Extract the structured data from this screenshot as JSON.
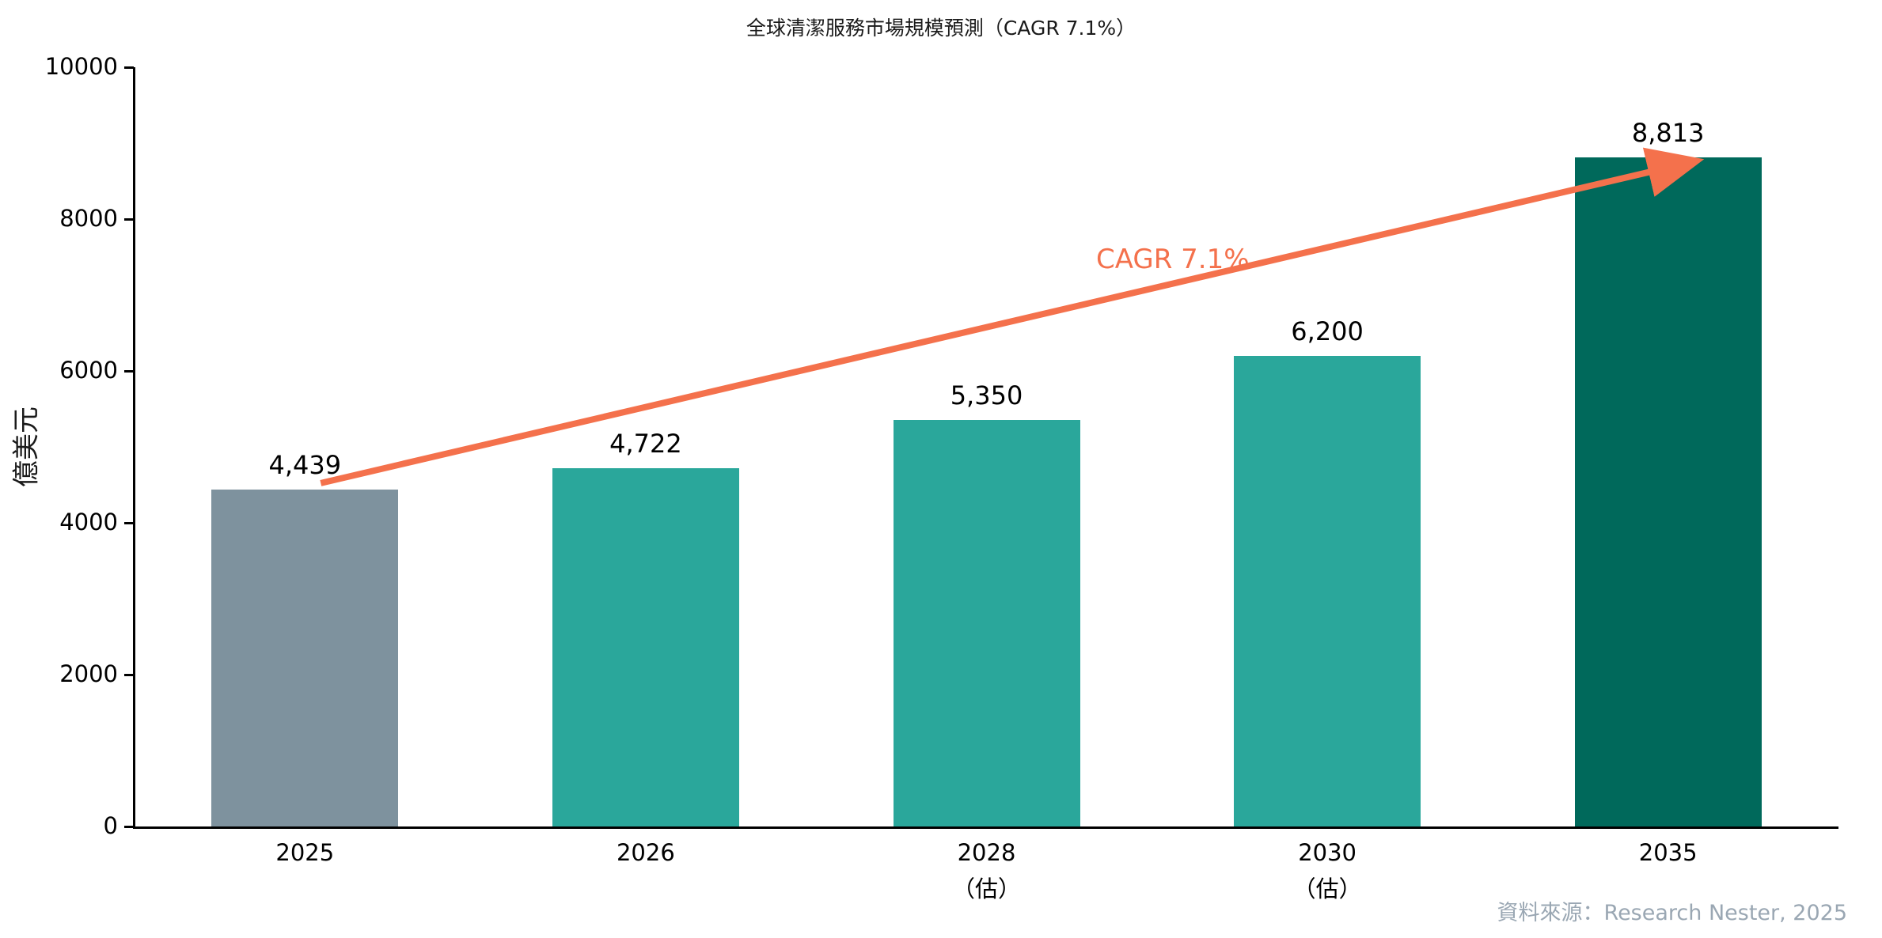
{
  "title": "全球清潔服務市場規模預測（CAGR 7.1%）",
  "source_text": "資料來源：Research Nester, 2025",
  "chart_data": {
    "type": "bar",
    "title": "全球清潔服務市場規模預測（CAGR 7.1%）",
    "xlabel": "",
    "ylabel": "億美元",
    "ylim": [
      0,
      10000
    ],
    "yticks": [
      0,
      2000,
      4000,
      6000,
      8000,
      10000
    ],
    "categories": [
      {
        "label": "2025",
        "sublabel": ""
      },
      {
        "label": "2026",
        "sublabel": ""
      },
      {
        "label": "2028",
        "sublabel": "（估）"
      },
      {
        "label": "2030",
        "sublabel": "（估）"
      },
      {
        "label": "2035",
        "sublabel": ""
      }
    ],
    "values": [
      4439,
      4722,
      5350,
      6200,
      8813
    ],
    "value_labels": [
      "4,439",
      "4,722",
      "5,350",
      "6,200",
      "8,813"
    ],
    "bar_colors": [
      "#7e929e",
      "#2aa79b",
      "#2aa79b",
      "#2aa79b",
      "#00695b"
    ],
    "grid": false,
    "legend": "none",
    "annotation": {
      "text": "CAGR 7.1%",
      "color": "#f4714c"
    }
  }
}
